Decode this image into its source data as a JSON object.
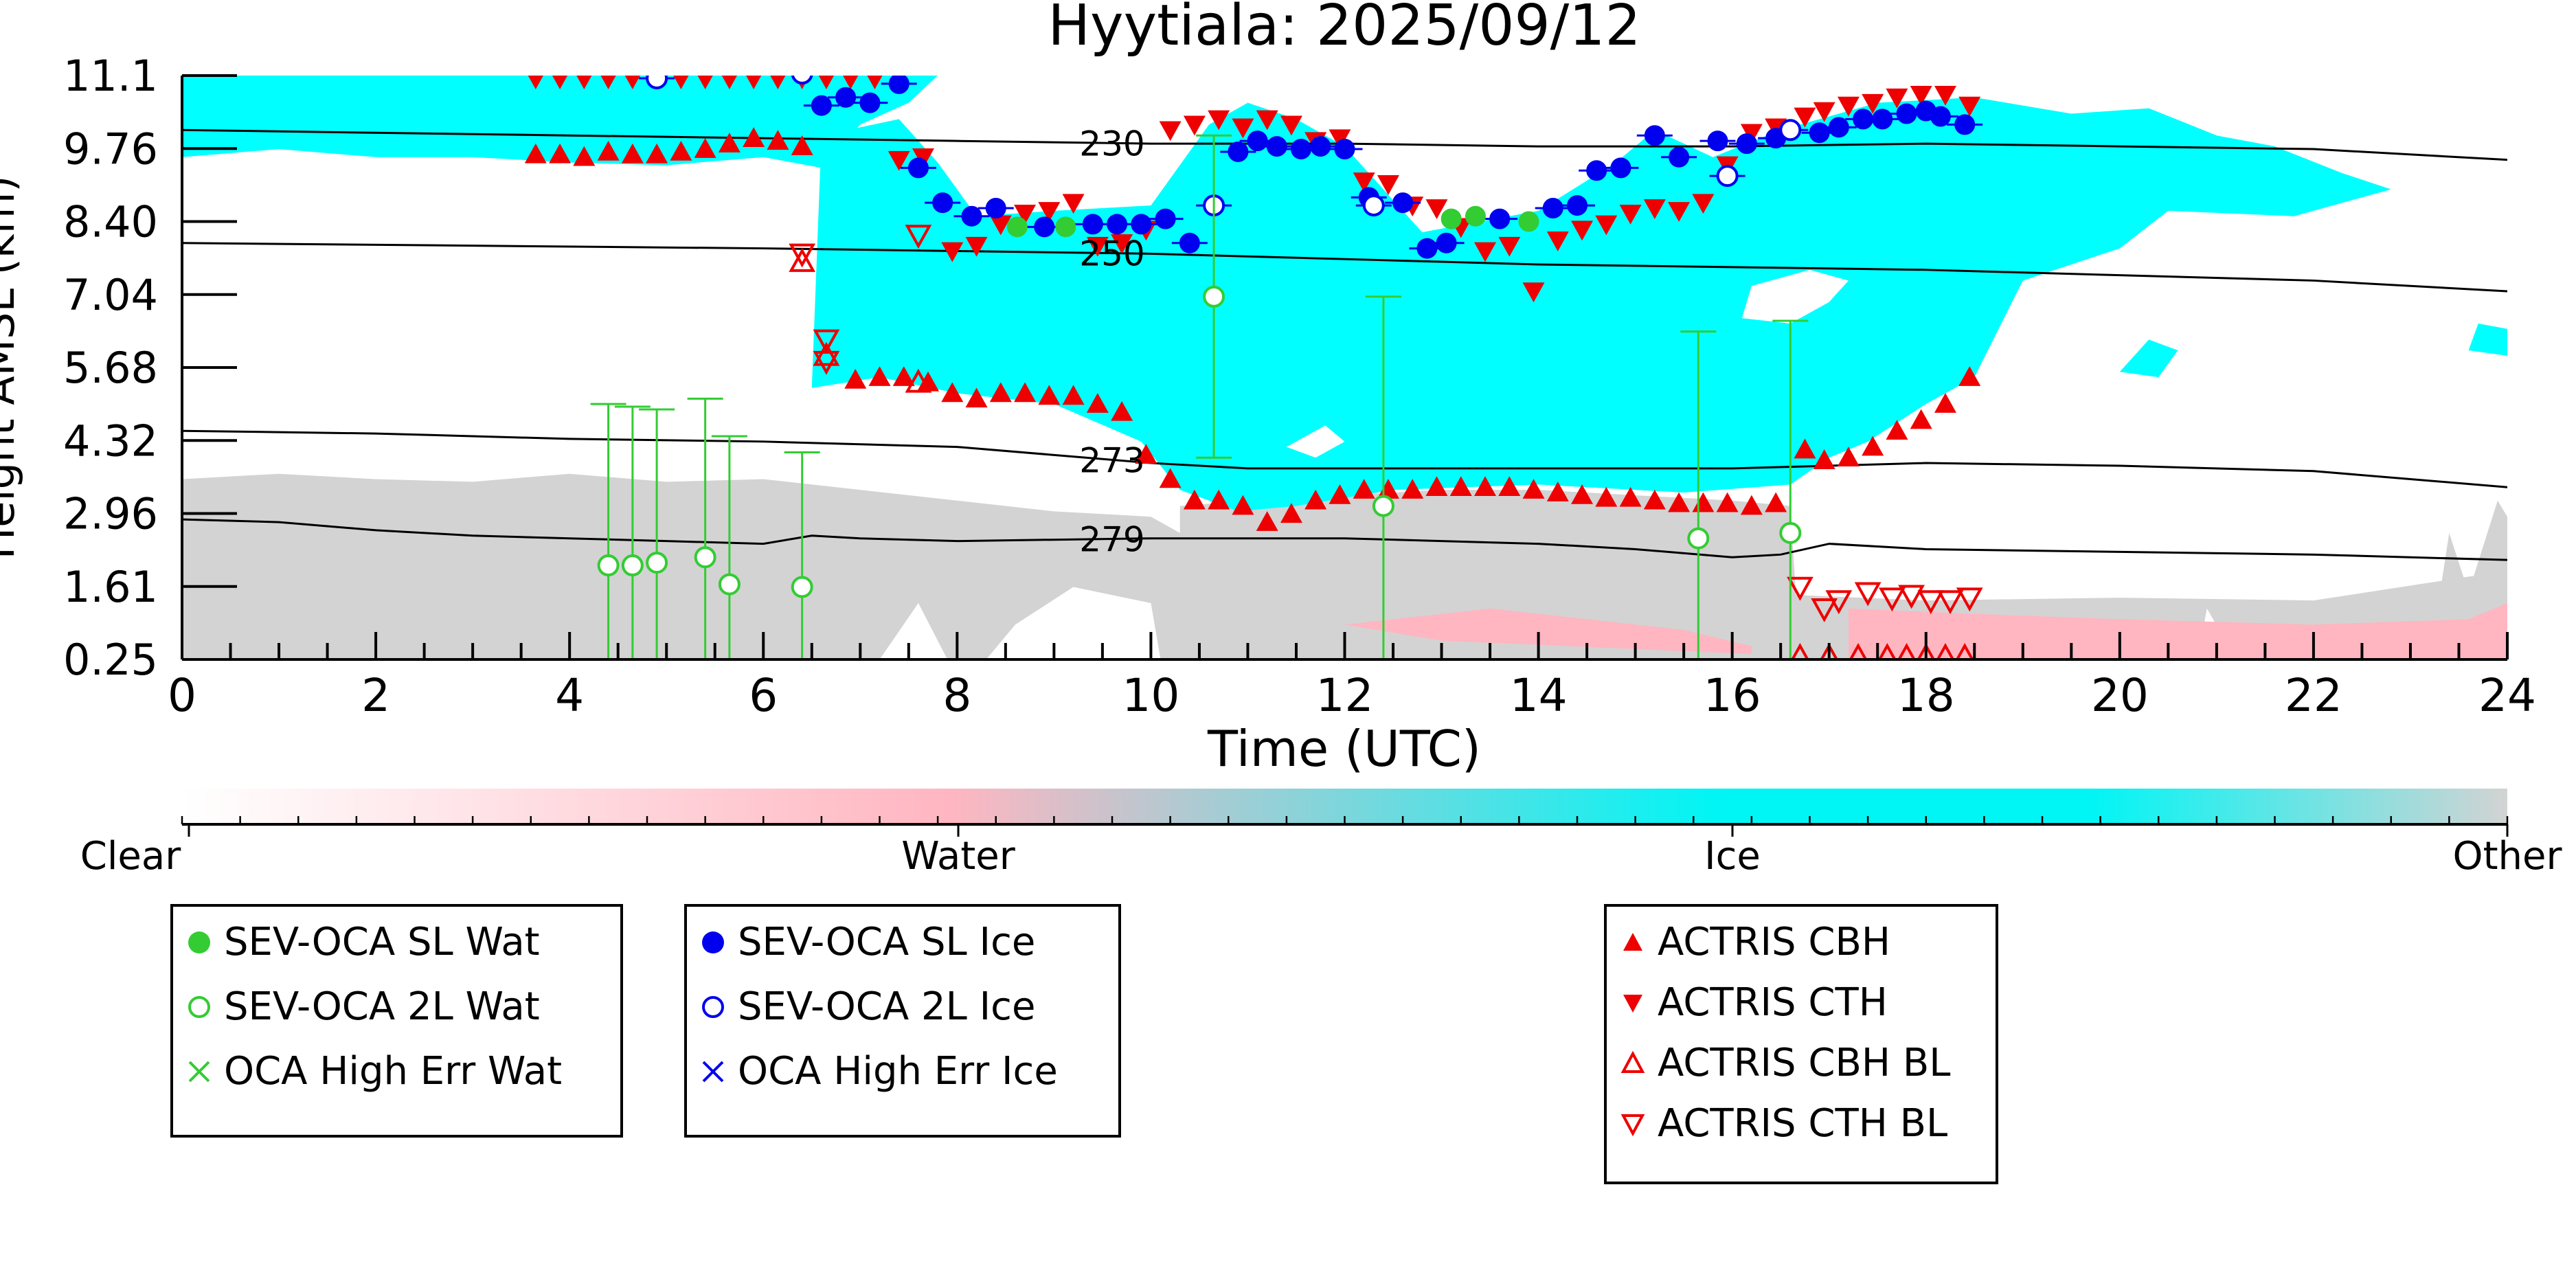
{
  "chart_data": {
    "type": "scatter",
    "title": "Hyytiala: 2025/09/12",
    "xlabel": "Time (UTC)",
    "ylabel": "Height AMSL (km)",
    "xlim": [
      0,
      24
    ],
    "ylim": [
      0.25,
      11.1
    ],
    "x_ticks": [
      "0",
      "2",
      "4",
      "6",
      "8",
      "10",
      "12",
      "14",
      "16",
      "18",
      "20",
      "22",
      "24"
    ],
    "y_ticks": [
      "0.25",
      "1.61",
      "2.96",
      "4.32",
      "5.68",
      "7.04",
      "8.40",
      "9.76",
      "11.1"
    ],
    "y_tick_values": [
      0.25,
      1.61,
      2.96,
      4.32,
      5.68,
      7.04,
      8.4,
      9.76,
      11.1
    ],
    "colorbar": {
      "labels": [
        "Clear",
        "Water",
        "Ice",
        "Other"
      ],
      "colors": [
        "#ffffff",
        "#ffb6c1",
        "#00f5f5",
        "#d3d3d3"
      ]
    },
    "background_classes": {
      "ice_color": "#00ffff",
      "water_color": "#ffb6c1",
      "other_color": "#d3d3d3"
    },
    "temperature_contours": [
      {
        "label": "230",
        "label_x": 9.6,
        "x": [
          0,
          4,
          8,
          10,
          12,
          14,
          16,
          18,
          20,
          22,
          24
        ],
        "y": [
          10.1,
          10.0,
          9.9,
          9.85,
          9.85,
          9.8,
          9.8,
          9.85,
          9.8,
          9.75,
          9.55
        ]
      },
      {
        "label": "250",
        "label_x": 9.6,
        "x": [
          0,
          3,
          6,
          8,
          10,
          12,
          14,
          16,
          18,
          20,
          22,
          24
        ],
        "y": [
          8.0,
          7.95,
          7.9,
          7.85,
          7.8,
          7.7,
          7.6,
          7.55,
          7.5,
          7.4,
          7.3,
          7.1
        ]
      },
      {
        "label": "273",
        "label_x": 9.6,
        "x": [
          0,
          2,
          4,
          6,
          8,
          9,
          10,
          11,
          12,
          14,
          16,
          18,
          20,
          22,
          24
        ],
        "y": [
          4.5,
          4.45,
          4.35,
          4.3,
          4.2,
          4.05,
          3.9,
          3.8,
          3.8,
          3.8,
          3.8,
          3.9,
          3.85,
          3.75,
          3.45
        ]
      },
      {
        "label": "279",
        "label_x": 9.6,
        "x": [
          0,
          1,
          2,
          3,
          4,
          5,
          6,
          6.5,
          7,
          8,
          10,
          12,
          14,
          15,
          16,
          16.5,
          17,
          18,
          20,
          22,
          24
        ],
        "y": [
          2.85,
          2.8,
          2.65,
          2.55,
          2.5,
          2.45,
          2.4,
          2.55,
          2.5,
          2.45,
          2.5,
          2.5,
          2.4,
          2.3,
          2.15,
          2.2,
          2.4,
          2.3,
          2.25,
          2.2,
          2.1
        ]
      }
    ],
    "series": [
      {
        "name": "SEV-OCA SL Wat",
        "marker": "filled-circle",
        "color": "#33cc33",
        "x": [
          8.62,
          9.12,
          13.1,
          13.35,
          13.9
        ],
        "y": [
          8.3,
          8.3,
          8.45,
          8.5,
          8.4
        ]
      },
      {
        "name": "SEV-OCA 2L Wat",
        "marker": "open-circle",
        "color": "#33cc33",
        "x": [
          4.4,
          4.65,
          4.9,
          5.4,
          5.65,
          6.4,
          10.65,
          12.4,
          15.65,
          16.6
        ],
        "y": [
          2.0,
          2.0,
          2.05,
          2.15,
          1.65,
          1.6,
          7.0,
          3.1,
          2.5,
          2.6
        ],
        "err_low": [
          null,
          null,
          null,
          null,
          null,
          null,
          4.0,
          0.25,
          0.25,
          0.25
        ],
        "err_high": [
          5.0,
          4.95,
          4.9,
          5.1,
          4.4,
          4.1,
          10.0,
          7.0,
          6.35,
          6.55
        ]
      },
      {
        "name": "OCA High Err Wat",
        "marker": "x",
        "color": "#33cc33",
        "x": [],
        "y": []
      },
      {
        "name": "SEV-OCA SL Ice",
        "marker": "filled-circle",
        "color": "#0000ee",
        "x": [
          6.6,
          6.85,
          7.1,
          7.4,
          7.6,
          7.85,
          8.15,
          8.4,
          8.9,
          9.4,
          9.65,
          9.9,
          10.15,
          10.4,
          10.9,
          11.1,
          11.3,
          11.55,
          11.75,
          12.0,
          12.25,
          12.6,
          12.85,
          13.05,
          13.6,
          14.15,
          14.4,
          14.6,
          14.85,
          15.2,
          15.45,
          15.85,
          16.15,
          16.45,
          16.9,
          17.1,
          17.35,
          17.55,
          17.8,
          18.0,
          18.15,
          18.4
        ],
        "y": [
          10.55,
          10.7,
          10.6,
          10.95,
          9.4,
          8.75,
          8.5,
          8.65,
          8.3,
          8.35,
          8.35,
          8.35,
          8.45,
          8.0,
          9.7,
          9.9,
          9.8,
          9.75,
          9.8,
          9.75,
          8.85,
          8.75,
          7.9,
          8.0,
          8.45,
          8.65,
          8.7,
          9.35,
          9.4,
          10.0,
          9.6,
          9.9,
          9.85,
          9.95,
          10.05,
          10.15,
          10.3,
          10.3,
          10.4,
          10.45,
          10.35,
          10.2
        ]
      },
      {
        "name": "SEV-OCA 2L Ice",
        "marker": "open-circle",
        "color": "#0000ee",
        "x": [
          4.9,
          6.4,
          10.65,
          12.3,
          15.95,
          16.6
        ],
        "y": [
          11.05,
          11.15,
          8.7,
          8.7,
          9.25,
          10.1
        ]
      },
      {
        "name": "OCA High Err Ice",
        "marker": "x",
        "color": "#0000ee",
        "x": [],
        "y": []
      },
      {
        "name": "ACTRIS CBH",
        "marker": "triangle-up-filled",
        "color": "#ee0000",
        "x": [
          3.65,
          3.9,
          4.15,
          4.4,
          4.65,
          4.9,
          5.15,
          5.4,
          5.65,
          5.9,
          6.15,
          6.4,
          6.95,
          7.2,
          7.45,
          7.7,
          7.95,
          8.2,
          8.45,
          8.7,
          8.95,
          9.2,
          9.45,
          9.7,
          9.95,
          10.2,
          10.45,
          10.7,
          10.95,
          11.2,
          11.45,
          11.7,
          11.95,
          12.2,
          12.45,
          12.7,
          12.95,
          13.2,
          13.45,
          13.7,
          13.95,
          14.2,
          14.45,
          14.7,
          14.95,
          15.2,
          15.45,
          15.7,
          15.95,
          16.2,
          16.45,
          16.75,
          16.95,
          17.2,
          17.45,
          17.7,
          17.95,
          18.2,
          18.45
        ],
        "y": [
          9.65,
          9.65,
          9.6,
          9.7,
          9.65,
          9.65,
          9.7,
          9.75,
          9.85,
          9.95,
          9.9,
          9.8,
          5.45,
          5.5,
          5.5,
          5.4,
          5.2,
          5.1,
          5.2,
          5.2,
          5.15,
          5.15,
          5.0,
          4.85,
          4.05,
          3.6,
          3.2,
          3.2,
          3.1,
          2.8,
          2.95,
          3.2,
          3.3,
          3.4,
          3.4,
          3.4,
          3.45,
          3.45,
          3.45,
          3.45,
          3.4,
          3.35,
          3.3,
          3.25,
          3.25,
          3.2,
          3.15,
          3.15,
          3.15,
          3.1,
          3.15,
          4.15,
          3.95,
          4.0,
          4.2,
          4.5,
          4.7,
          5.0,
          5.5
        ]
      },
      {
        "name": "ACTRIS CTH",
        "marker": "triangle-down-filled",
        "color": "#ee0000",
        "x": [
          3.65,
          3.9,
          4.15,
          4.4,
          4.65,
          4.9,
          5.15,
          5.4,
          5.65,
          5.9,
          6.15,
          6.4,
          6.65,
          6.9,
          7.15,
          7.4,
          7.65,
          7.95,
          8.2,
          8.45,
          8.7,
          8.95,
          9.2,
          9.45,
          9.7,
          9.95,
          10.2,
          10.45,
          10.7,
          10.95,
          11.2,
          11.45,
          11.7,
          11.95,
          12.2,
          12.45,
          12.7,
          12.95,
          13.2,
          13.45,
          13.7,
          13.95,
          14.2,
          14.45,
          14.7,
          14.95,
          15.2,
          15.45,
          15.7,
          15.95,
          16.2,
          16.45,
          16.75,
          16.95,
          17.2,
          17.45,
          17.7,
          17.95,
          18.2,
          18.45
        ],
        "y": [
          11.05,
          11.05,
          11.05,
          11.05,
          11.05,
          11.05,
          11.05,
          11.05,
          11.05,
          11.05,
          11.05,
          11.05,
          11.05,
          11.05,
          11.05,
          9.55,
          9.6,
          7.85,
          7.95,
          8.35,
          8.55,
          8.6,
          8.75,
          7.95,
          8.0,
          8.25,
          10.1,
          10.2,
          10.3,
          10.15,
          10.3,
          10.2,
          9.9,
          9.95,
          9.15,
          9.1,
          8.7,
          8.65,
          8.3,
          7.85,
          7.95,
          7.1,
          8.05,
          8.25,
          8.35,
          8.55,
          8.65,
          8.6,
          8.75,
          9.45,
          10.05,
          10.15,
          10.35,
          10.45,
          10.55,
          10.6,
          10.7,
          10.75,
          10.75,
          10.55
        ]
      },
      {
        "name": "ACTRIS CBH BL",
        "marker": "triangle-up-open",
        "color": "#ee0000",
        "x": [
          6.4,
          6.65,
          7.6,
          16.7,
          17.0,
          17.3,
          17.6,
          17.8,
          18.0,
          18.2,
          18.4
        ],
        "y": [
          7.65,
          5.9,
          5.4,
          0.3,
          0.3,
          0.3,
          0.3,
          0.3,
          0.3,
          0.3,
          0.3
        ]
      },
      {
        "name": "ACTRIS CTH BL",
        "marker": "triangle-down-open",
        "color": "#ee0000",
        "x": [
          6.4,
          6.65,
          6.65,
          7.6,
          16.7,
          16.95,
          17.1,
          17.4,
          17.65,
          17.85,
          18.05,
          18.25,
          18.45
        ],
        "y": [
          7.8,
          6.2,
          5.8,
          8.15,
          1.6,
          1.2,
          1.35,
          1.5,
          1.4,
          1.45,
          1.35,
          1.35,
          1.4
        ]
      }
    ],
    "legends": [
      [
        "SEV-OCA SL Wat",
        "SEV-OCA 2L Wat",
        "OCA High Err Wat"
      ],
      [
        "SEV-OCA SL Ice",
        "SEV-OCA 2L Ice",
        "OCA High Err Ice"
      ],
      [
        "ACTRIS CBH",
        "ACTRIS CTH",
        "ACTRIS CBH BL",
        "ACTRIS CTH BL"
      ]
    ]
  }
}
